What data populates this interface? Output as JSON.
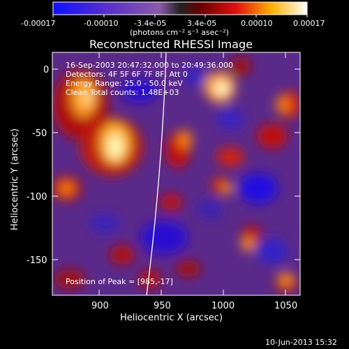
{
  "colorbar": {
    "tick_labels": [
      "-0.00017",
      "-0.00010",
      "-3.4e-05",
      "3.4e-05",
      "0.00010",
      "0.00017"
    ],
    "units": "(photons cm⁻² s⁻¹ asec⁻²)"
  },
  "plot": {
    "title": "Reconstructed RHESSI Image",
    "xlabel": "Heliocentric X (arcsec)",
    "ylabel": "Heliocentric Y (arcsec)",
    "x_ticks": [
      "900",
      "950",
      "1000",
      "1050"
    ],
    "y_ticks": [
      "0",
      "-50",
      "-100",
      "-150"
    ],
    "info_lines": [
      "16-Sep-2003 20:47:32.000 to 20:49:36.000",
      "Detectors: 4F 5F 6F 7F 8F, Att 0",
      "Energy Range: 25.0 - 50.0 keV",
      "Clean    Total counts: 1.48E+03"
    ],
    "peak_label": "Position of Peak = [985,-17]"
  },
  "footer": {
    "timestamp": "10-Jun-2013 15:32"
  }
}
